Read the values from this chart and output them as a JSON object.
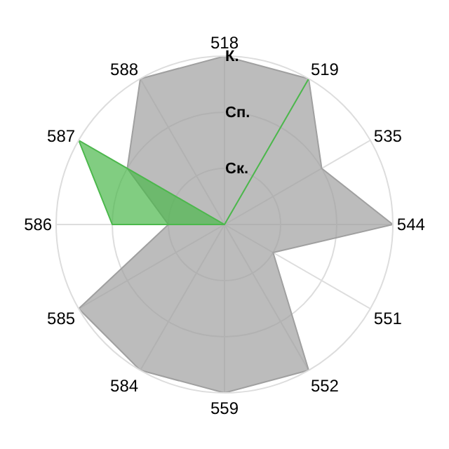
{
  "chart_data": {
    "type": "radar",
    "categories": [
      "518",
      "519",
      "535",
      "544",
      "551",
      "552",
      "559",
      "584",
      "585",
      "586",
      "587",
      "588"
    ],
    "series": [
      {
        "color": "#a0a0a0",
        "values": [
          3,
          3,
          2,
          3,
          1,
          3,
          3,
          3,
          3,
          1,
          2,
          3
        ]
      },
      {
        "color": "#4cb84c",
        "values": [
          0,
          3,
          0,
          0,
          0,
          0,
          0,
          0,
          0,
          2,
          3,
          0
        ]
      }
    ],
    "ylim": [
      0,
      3
    ],
    "yticks": [
      {
        "value": 1,
        "label": "Ск."
      },
      {
        "value": 2,
        "label": "Сп."
      },
      {
        "value": 3,
        "label": "К."
      }
    ],
    "grid": true
  }
}
